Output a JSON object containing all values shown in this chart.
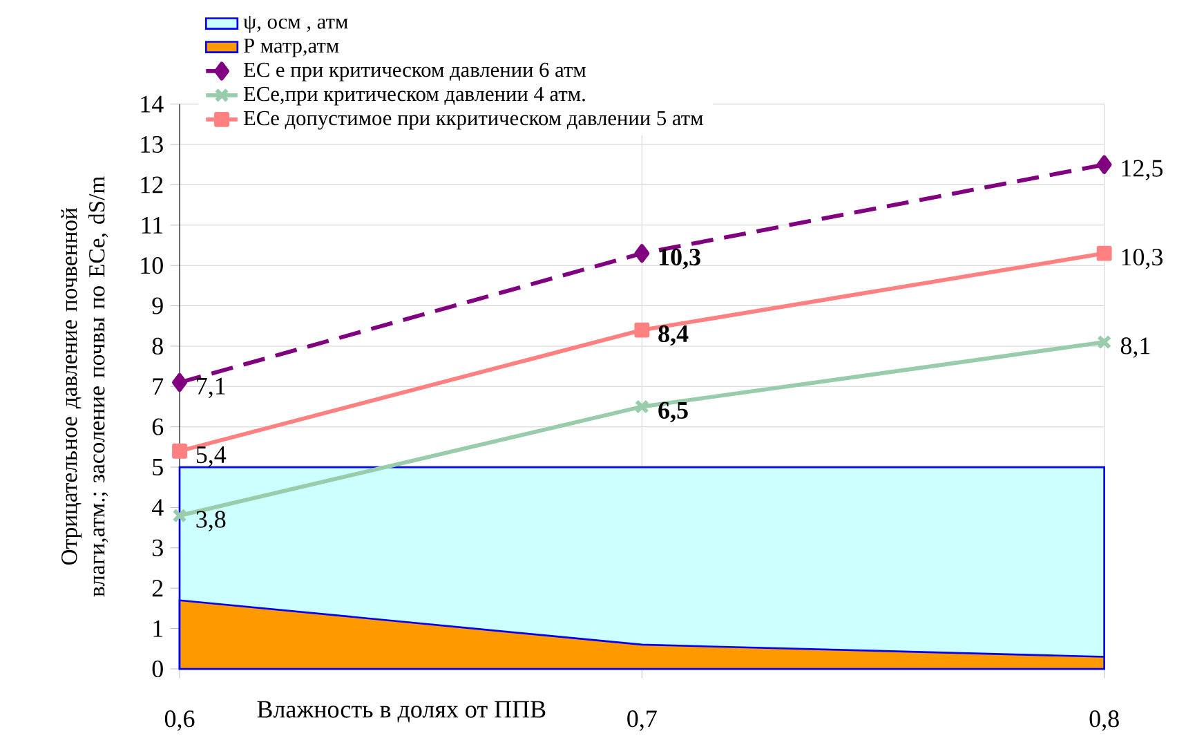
{
  "chart_data": {
    "type": "line",
    "xlabel": "Влажность в долях от ППВ",
    "ylabel": "Отрицательное давление почвенной влаги,атм.; засоление почвы  по ECe, dS/m",
    "categories": [
      "0,6",
      "0,7",
      "0,8"
    ],
    "ylim": [
      0,
      14
    ],
    "yticks": [
      0,
      1,
      2,
      3,
      4,
      5,
      6,
      7,
      8,
      9,
      10,
      11,
      12,
      13,
      14
    ],
    "grid": true,
    "legend": "top left",
    "series": [
      {
        "name": "ψ, осм , атм",
        "type": "area",
        "color": "#ccffff",
        "values": [
          5,
          5,
          5
        ],
        "marker": "none"
      },
      {
        "name": "Р матр,атм",
        "type": "area",
        "color": "#ff9900",
        "values": [
          1.7,
          0.6,
          0.3
        ],
        "marker": "none"
      },
      {
        "name": "ЕС е при критическом давлении 6 атм",
        "type": "line",
        "color": "#800080",
        "values": [
          7.1,
          10.3,
          12.5
        ],
        "marker": "diamond",
        "line_style": "dashed",
        "value_labels": [
          "7,1",
          "**10,3**",
          "12,5"
        ]
      },
      {
        "name": "ECe,при критическом давлении 4 атм.",
        "type": "line",
        "color": "#99ccaa",
        "values": [
          3.8,
          6.5,
          8.1
        ],
        "marker": "cross",
        "line_style": "solid",
        "value_labels": [
          "3,8",
          "**6,5**",
          "8,1"
        ]
      },
      {
        "name": "ECe допустимое при ккритическом давлении 5 атм",
        "type": "line",
        "color": "#ff8080",
        "values": [
          5.4,
          8.4,
          10.3
        ],
        "marker": "square",
        "line_style": "solid",
        "value_labels": [
          "5,4",
          "**8,4**",
          "10,3"
        ]
      }
    ]
  }
}
